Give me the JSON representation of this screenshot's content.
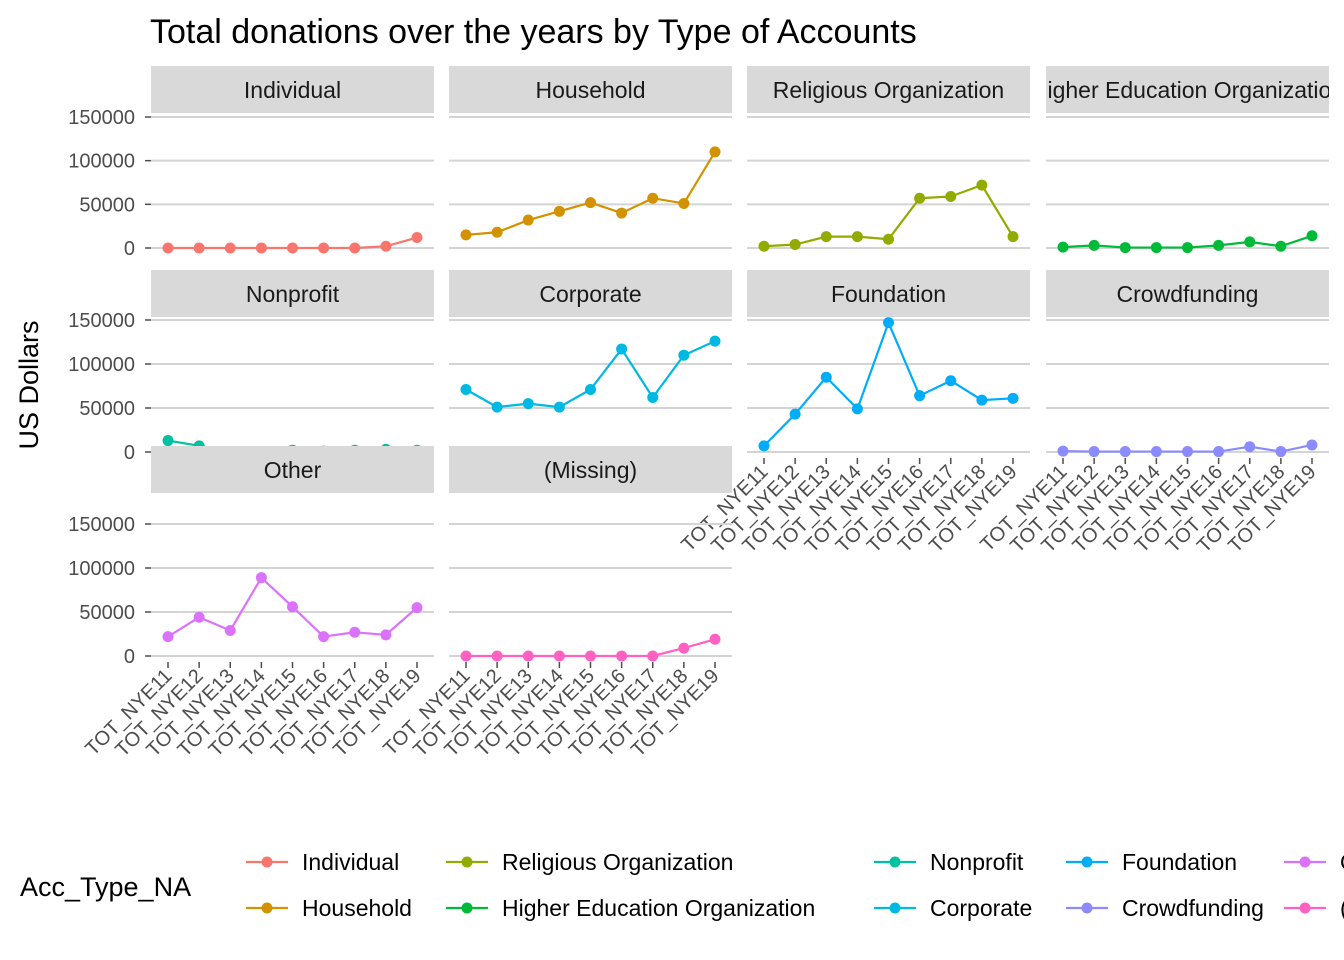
{
  "chart_data": {
    "type": "line",
    "title": "Total donations over the years by Type of Accounts",
    "xlabel": "",
    "ylabel": "US Dollars",
    "ylim": [
      0,
      150000
    ],
    "y_ticks": [
      0,
      50000,
      100000,
      150000
    ],
    "y_tick_labels": [
      "0",
      "50000",
      "100000",
      "150000"
    ],
    "categories": [
      "TOT_NYE11",
      "TOT_NYE12",
      "TOT_NYE13",
      "TOT_NYE14",
      "TOT_NYE15",
      "TOT_NYE16",
      "TOT_NYE17",
      "TOT_NYE18",
      "TOT_NYE19"
    ],
    "grid": true,
    "legend": {
      "title": "Acc_Type_NA",
      "position": "bottom"
    },
    "series": [
      {
        "name": "Individual",
        "color": "#F8766D",
        "values": [
          0,
          0,
          0,
          0,
          0,
          0,
          0,
          2000,
          12000
        ]
      },
      {
        "name": "Household",
        "color": "#D39200",
        "values": [
          15000,
          18000,
          32000,
          42000,
          52000,
          40000,
          57000,
          51000,
          110000
        ]
      },
      {
        "name": "Religious Organization",
        "color": "#93AA00",
        "values": [
          2000,
          4000,
          13000,
          13000,
          10000,
          57000,
          59000,
          72000,
          13000
        ]
      },
      {
        "name": "Higher Education Organization",
        "color": "#00BA38",
        "values": [
          1000,
          3000,
          500,
          500,
          500,
          3000,
          7000,
          2000,
          14000
        ]
      },
      {
        "name": "Nonprofit",
        "color": "#00C19F",
        "values": [
          13000,
          7000,
          500,
          500,
          2000,
          1000,
          2000,
          3000,
          2000
        ]
      },
      {
        "name": "Corporate",
        "color": "#00B9E3",
        "values": [
          71000,
          51000,
          55000,
          51000,
          71000,
          117000,
          62000,
          110000,
          126000
        ]
      },
      {
        "name": "Foundation",
        "color": "#00ADFA",
        "values": [
          7000,
          43000,
          85000,
          49000,
          147000,
          64000,
          81000,
          59000,
          61000
        ]
      },
      {
        "name": "Crowdfunding",
        "color": "#8B8BFF",
        "values": [
          1000,
          500,
          500,
          500,
          500,
          500,
          6000,
          500,
          8000
        ]
      },
      {
        "name": "Other",
        "color": "#DB72FB",
        "values": [
          22000,
          44000,
          29000,
          89000,
          56000,
          22000,
          27000,
          24000,
          55000
        ]
      },
      {
        "name": "(Missing)",
        "color": "#FF61C3",
        "values": [
          0,
          0,
          0,
          0,
          0,
          0,
          0,
          9000,
          19000
        ]
      }
    ]
  }
}
